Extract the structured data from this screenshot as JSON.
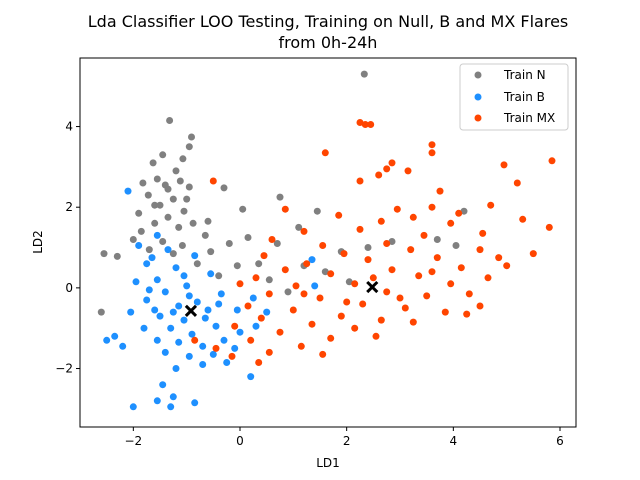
{
  "chart_data": {
    "type": "scatter",
    "title": "Lda Classifier LOO Testing, Training on Null, B and MX Flares",
    "subtitle": "from 0h-24h",
    "xlabel": "LD1",
    "ylabel": "LD2",
    "xlim": [
      -3.0,
      6.3
    ],
    "ylim": [
      -3.45,
      5.7
    ],
    "xticks": [
      -2,
      0,
      2,
      4,
      6
    ],
    "yticks": [
      -2,
      0,
      2,
      4
    ],
    "xtick_labels": [
      "−2",
      "0",
      "2",
      "4",
      "6"
    ],
    "ytick_labels": [
      "−2",
      "0",
      "2",
      "4"
    ],
    "grid": false,
    "legend_position": "top-right",
    "series": [
      {
        "name": "Train N",
        "color": "#808080",
        "marker": "circle",
        "points": [
          [
            2.33,
            5.3
          ],
          [
            -1.32,
            4.15
          ],
          [
            -0.91,
            3.74
          ],
          [
            -1.45,
            3.3
          ],
          [
            -1.07,
            3.2
          ],
          [
            -1.63,
            3.1
          ],
          [
            -0.95,
            3.5
          ],
          [
            -1.2,
            2.9
          ],
          [
            -1.55,
            2.7
          ],
          [
            -1.82,
            2.6
          ],
          [
            -1.4,
            2.55
          ],
          [
            -1.12,
            2.65
          ],
          [
            -0.95,
            2.5
          ],
          [
            -1.72,
            2.3
          ],
          [
            -1.25,
            2.2
          ],
          [
            -1.5,
            2.05
          ],
          [
            -1.9,
            1.85
          ],
          [
            -1.05,
            1.9
          ],
          [
            -1.35,
            1.75
          ],
          [
            -1.6,
            1.6
          ],
          [
            -1.15,
            1.5
          ],
          [
            -1.85,
            1.4
          ],
          [
            -0.88,
            1.6
          ],
          [
            -2.0,
            1.2
          ],
          [
            -1.45,
            1.15
          ],
          [
            -1.08,
            1.05
          ],
          [
            -1.7,
            0.95
          ],
          [
            -1.25,
            0.85
          ],
          [
            -2.3,
            0.78
          ],
          [
            -2.55,
            0.85
          ],
          [
            -0.65,
            1.3
          ],
          [
            -0.55,
            0.9
          ],
          [
            -0.2,
            1.1
          ],
          [
            0.05,
            1.95
          ],
          [
            0.15,
            1.25
          ],
          [
            0.75,
            2.25
          ],
          [
            1.45,
            1.9
          ],
          [
            1.1,
            1.5
          ],
          [
            0.7,
            1.1
          ],
          [
            0.35,
            0.6
          ],
          [
            -0.05,
            0.55
          ],
          [
            -0.4,
            0.3
          ],
          [
            0.55,
            0.2
          ],
          [
            1.9,
            0.9
          ],
          [
            2.4,
            1.0
          ],
          [
            2.85,
            1.15
          ],
          [
            3.7,
            1.2
          ],
          [
            4.2,
            1.9
          ],
          [
            4.05,
            1.05
          ],
          [
            1.6,
            0.4
          ],
          [
            2.05,
            0.15
          ],
          [
            0.9,
            -0.1
          ],
          [
            1.2,
            0.55
          ],
          [
            -0.3,
            2.48
          ],
          [
            -0.6,
            1.65
          ],
          [
            -0.8,
            0.6
          ],
          [
            -2.6,
            -0.6
          ],
          [
            -1.35,
            2.45
          ],
          [
            -1.6,
            2.05
          ],
          [
            -1.0,
            2.2
          ]
        ]
      },
      {
        "name": "Train B",
        "color": "#1e90ff",
        "marker": "circle",
        "points": [
          [
            -2.1,
            2.4
          ],
          [
            -1.55,
            1.3
          ],
          [
            -1.9,
            1.05
          ],
          [
            -1.35,
            0.95
          ],
          [
            -1.75,
            0.6
          ],
          [
            -1.2,
            0.5
          ],
          [
            -1.55,
            0.2
          ],
          [
            -1.95,
            0.15
          ],
          [
            -1.0,
            0.05
          ],
          [
            -1.4,
            -0.1
          ],
          [
            -1.75,
            -0.3
          ],
          [
            -1.15,
            -0.45
          ],
          [
            -0.8,
            -0.35
          ],
          [
            -1.5,
            -0.7
          ],
          [
            -2.05,
            -0.6
          ],
          [
            -1.05,
            -0.8
          ],
          [
            -0.65,
            -0.75
          ],
          [
            -1.3,
            -1.0
          ],
          [
            -1.8,
            -1.0
          ],
          [
            -0.9,
            -1.15
          ],
          [
            -0.45,
            -0.95
          ],
          [
            -1.55,
            -1.3
          ],
          [
            -1.15,
            -1.35
          ],
          [
            -0.7,
            -1.45
          ],
          [
            -0.3,
            -1.3
          ],
          [
            -1.4,
            -1.6
          ],
          [
            -0.95,
            -1.7
          ],
          [
            -0.5,
            -1.65
          ],
          [
            -0.1,
            -1.5
          ],
          [
            -1.2,
            -2.0
          ],
          [
            -0.7,
            -1.9
          ],
          [
            -0.25,
            -1.85
          ],
          [
            -1.45,
            -2.4
          ],
          [
            -1.25,
            -2.7
          ],
          [
            -1.3,
            -2.95
          ],
          [
            -0.85,
            -2.85
          ],
          [
            -2.0,
            -2.95
          ],
          [
            -1.55,
            -2.8
          ],
          [
            0.2,
            -2.2
          ],
          [
            0.0,
            -1.1
          ],
          [
            0.3,
            -0.95
          ],
          [
            -0.05,
            -0.55
          ],
          [
            0.25,
            -0.25
          ],
          [
            -0.35,
            -0.15
          ],
          [
            -0.55,
            0.35
          ],
          [
            -2.35,
            -1.2
          ],
          [
            -2.5,
            -1.3
          ],
          [
            -2.2,
            -1.45
          ],
          [
            -1.65,
            0.75
          ],
          [
            -1.05,
            0.3
          ],
          [
            -0.85,
            0.8
          ],
          [
            1.4,
            0.05
          ],
          [
            1.35,
            0.7
          ],
          [
            0.5,
            -0.6
          ],
          [
            -1.7,
            -0.05
          ],
          [
            -0.95,
            -0.2
          ],
          [
            -1.25,
            -0.6
          ],
          [
            -1.6,
            -0.55
          ],
          [
            -0.6,
            -0.55
          ],
          [
            -0.4,
            -0.4
          ]
        ]
      },
      {
        "name": "Train MX",
        "color": "#ff4500",
        "marker": "circle",
        "points": [
          [
            2.25,
            4.1
          ],
          [
            2.35,
            4.05
          ],
          [
            2.45,
            4.05
          ],
          [
            3.6,
            3.55
          ],
          [
            3.6,
            3.35
          ],
          [
            1.6,
            3.35
          ],
          [
            5.85,
            3.15
          ],
          [
            2.85,
            3.1
          ],
          [
            4.95,
            3.05
          ],
          [
            2.75,
            2.95
          ],
          [
            3.15,
            2.9
          ],
          [
            2.6,
            2.8
          ],
          [
            5.2,
            2.6
          ],
          [
            -0.5,
            2.65
          ],
          [
            2.25,
            2.65
          ],
          [
            3.75,
            2.4
          ],
          [
            4.7,
            2.05
          ],
          [
            2.95,
            1.95
          ],
          [
            3.6,
            2.0
          ],
          [
            4.1,
            1.85
          ],
          [
            1.85,
            1.8
          ],
          [
            3.25,
            1.75
          ],
          [
            0.85,
            1.95
          ],
          [
            2.65,
            1.65
          ],
          [
            5.3,
            1.7
          ],
          [
            3.95,
            1.6
          ],
          [
            1.2,
            1.4
          ],
          [
            2.25,
            1.45
          ],
          [
            4.55,
            1.35
          ],
          [
            3.45,
            1.3
          ],
          [
            0.6,
            1.2
          ],
          [
            1.55,
            1.05
          ],
          [
            2.75,
            1.1
          ],
          [
            5.8,
            1.5
          ],
          [
            3.2,
            0.95
          ],
          [
            4.5,
            0.95
          ],
          [
            1.95,
            0.85
          ],
          [
            0.45,
            0.8
          ],
          [
            2.4,
            0.7
          ],
          [
            3.7,
            0.75
          ],
          [
            4.85,
            0.75
          ],
          [
            1.25,
            0.6
          ],
          [
            5.5,
            0.85
          ],
          [
            0.85,
            0.45
          ],
          [
            2.85,
            0.45
          ],
          [
            4.15,
            0.5
          ],
          [
            1.7,
            0.35
          ],
          [
            3.35,
            0.3
          ],
          [
            0.3,
            0.25
          ],
          [
            5.0,
            0.55
          ],
          [
            2.15,
            0.1
          ],
          [
            3.95,
            0.1
          ],
          [
            1.05,
            0.05
          ],
          [
            4.65,
            0.25
          ],
          [
            2.75,
            -0.1
          ],
          [
            0.55,
            -0.15
          ],
          [
            3.5,
            -0.2
          ],
          [
            1.5,
            -0.25
          ],
          [
            4.3,
            -0.15
          ],
          [
            2.3,
            -0.4
          ],
          [
            0.15,
            -0.45
          ],
          [
            3.1,
            -0.5
          ],
          [
            1.0,
            -0.55
          ],
          [
            4.5,
            -0.45
          ],
          [
            1.9,
            -0.7
          ],
          [
            0.4,
            -0.75
          ],
          [
            2.65,
            -0.8
          ],
          [
            3.85,
            -0.6
          ],
          [
            1.35,
            -0.9
          ],
          [
            -0.1,
            -0.95
          ],
          [
            2.15,
            -1.0
          ],
          [
            0.75,
            -1.1
          ],
          [
            3.25,
            -0.85
          ],
          [
            1.7,
            -1.25
          ],
          [
            0.2,
            -1.3
          ],
          [
            1.15,
            -1.45
          ],
          [
            2.55,
            -1.2
          ],
          [
            0.55,
            -1.6
          ],
          [
            1.55,
            -1.65
          ],
          [
            -0.85,
            -1.3
          ],
          [
            -0.45,
            -1.5
          ],
          [
            -0.15,
            -1.7
          ],
          [
            0.35,
            -1.85
          ],
          [
            4.25,
            -0.65
          ],
          [
            3.0,
            -0.25
          ],
          [
            2.0,
            -0.35
          ],
          [
            3.6,
            0.4
          ],
          [
            1.2,
            -0.15
          ],
          [
            0.0,
            0.1
          ],
          [
            2.5,
            0.25
          ]
        ]
      }
    ],
    "centroids": [
      {
        "x": -0.92,
        "y": -0.57,
        "color": "#000000",
        "marker": "x"
      },
      {
        "x": 2.48,
        "y": 0.02,
        "color": "#000000",
        "marker": "x"
      }
    ]
  }
}
